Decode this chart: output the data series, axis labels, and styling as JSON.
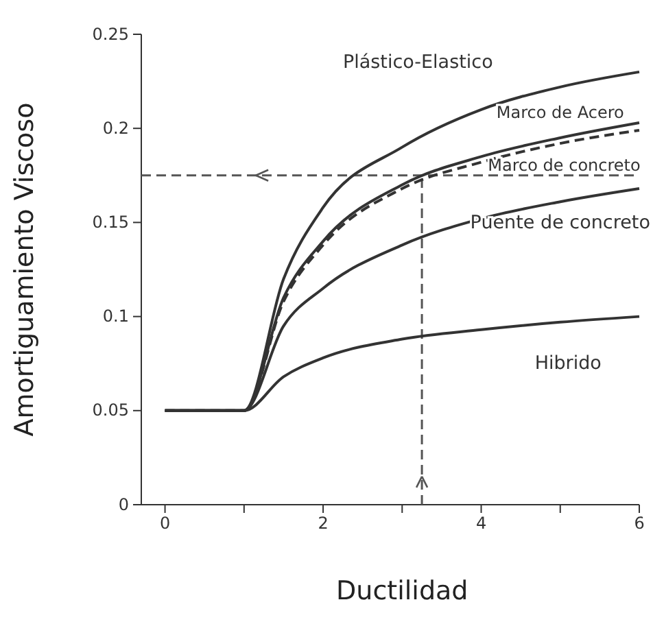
{
  "chart_data": {
    "type": "line",
    "xlabel": "Ductilidad",
    "ylabel": "Amortiguamiento Viscoso",
    "xlim": [
      -0.3,
      6
    ],
    "ylim": [
      0,
      0.25
    ],
    "xticks": [
      0,
      {
        "value": 1,
        "label": null
      },
      2,
      {
        "value": 3,
        "label": null
      },
      4,
      {
        "value": 5,
        "label": null
      },
      6
    ],
    "yticks": [
      0,
      0.05,
      0.1,
      0.15,
      0.2,
      0.25
    ],
    "grid": false,
    "legend": false,
    "marker": "none",
    "x": [
      0,
      1,
      1.5,
      2,
      3,
      4,
      5,
      6
    ],
    "series": [
      {
        "name": "Plástico-Elastico",
        "color": "#333333",
        "line_style": "solid",
        "values": [
          0.05,
          0.05,
          0.12,
          0.158,
          0.19,
          0.21,
          0.222,
          0.23
        ]
      },
      {
        "name": "Marco de Acero",
        "color": "#333333",
        "line_style": "solid",
        "values": [
          0.05,
          0.05,
          0.11,
          0.14,
          0.17,
          0.185,
          0.195,
          0.203
        ]
      },
      {
        "name": "Marco de concreto",
        "color": "#333333",
        "line_style": "dashed",
        "values": [
          0.05,
          0.05,
          0.108,
          0.138,
          0.168,
          0.182,
          0.192,
          0.199
        ]
      },
      {
        "name": "Puente de concreto",
        "color": "#333333",
        "line_style": "solid",
        "values": [
          0.05,
          0.05,
          0.095,
          0.115,
          0.138,
          0.152,
          0.161,
          0.168
        ]
      },
      {
        "name": "Hibrido",
        "color": "#333333",
        "line_style": "solid",
        "values": [
          0.05,
          0.05,
          0.068,
          0.078,
          0.088,
          0.093,
          0.097,
          0.1
        ]
      }
    ],
    "ref_lines": [
      {
        "axis": "y",
        "value": 0.175,
        "label": null,
        "color": "#555555",
        "line_style": "dashed"
      },
      {
        "axis": "x",
        "value": 3.25,
        "label": null,
        "color": "#555555",
        "line_style": "dashed"
      }
    ]
  }
}
